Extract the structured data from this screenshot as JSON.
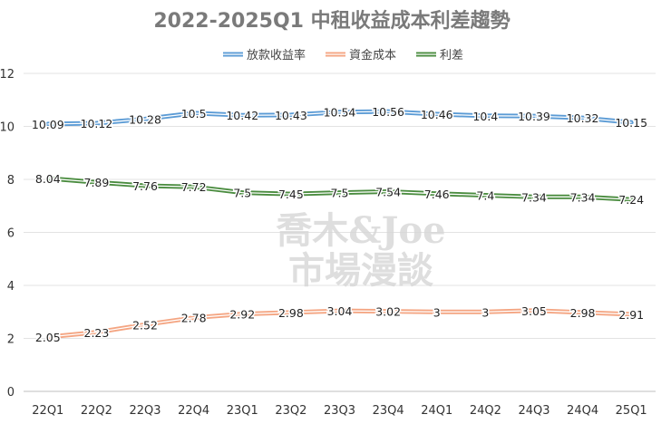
{
  "chart_data": {
    "type": "line",
    "title": "2022-2025Q1 中租收益成本利差趨勢",
    "categories": [
      "22Q1",
      "22Q2",
      "22Q3",
      "22Q4",
      "23Q1",
      "23Q2",
      "23Q3",
      "23Q4",
      "24Q1",
      "24Q2",
      "24Q3",
      "24Q4",
      "25Q1"
    ],
    "ylim": [
      0,
      12
    ],
    "yticks": [
      0,
      2,
      4,
      6,
      8,
      10,
      12
    ],
    "grid": true,
    "legend_position": "top-right",
    "series": [
      {
        "name": "放款收益率",
        "color": "#5b9bd5",
        "values": [
          10.09,
          10.12,
          10.28,
          10.5,
          10.42,
          10.43,
          10.54,
          10.56,
          10.46,
          10.4,
          10.39,
          10.32,
          10.15
        ]
      },
      {
        "name": "資金成本",
        "color": "#f4a582",
        "values": [
          2.05,
          2.23,
          2.52,
          2.78,
          2.92,
          2.98,
          3.04,
          3.02,
          3,
          3,
          3.05,
          2.98,
          2.91
        ]
      },
      {
        "name": "利差",
        "color": "#4a8c3f",
        "values": [
          8.04,
          7.89,
          7.76,
          7.72,
          7.5,
          7.45,
          7.5,
          7.54,
          7.46,
          7.4,
          7.34,
          7.34,
          7.24
        ]
      }
    ],
    "watermark": [
      "喬木&Joe",
      "市場漫談"
    ]
  }
}
